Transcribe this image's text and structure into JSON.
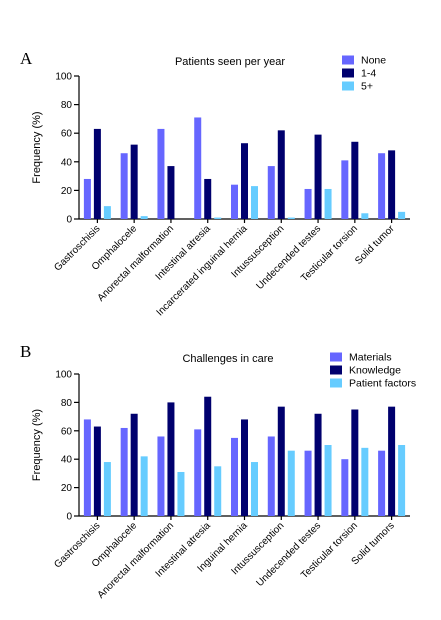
{
  "chart_data": [
    {
      "type": "bar",
      "panel_label": "A",
      "title": "Patients seen per year",
      "ylabel": "Frequency (%)",
      "xlabel": "",
      "ylim": [
        0,
        100
      ],
      "yticks": [
        0,
        20,
        40,
        60,
        80,
        100
      ],
      "legend_position": "top-right",
      "categories": [
        "Gastroschisis",
        "Omphalocele",
        "Anorectal malformation",
        "Intestinal atresia",
        "Incarcerated inguinal hernia",
        "Intussusception",
        "Undecended testes",
        "Testicular torsion",
        "Solid tumor"
      ],
      "series": [
        {
          "name": "None",
          "color": "#6666ff",
          "values": [
            28,
            46,
            63,
            71,
            24,
            37,
            21,
            41,
            46
          ]
        },
        {
          "name": "1-4",
          "color": "#00006e",
          "values": [
            63,
            52,
            37,
            28,
            53,
            62,
            59,
            54,
            48
          ]
        },
        {
          "name": "5+",
          "color": "#66ccff",
          "values": [
            9,
            2,
            0,
            1,
            23,
            1,
            21,
            4,
            5
          ]
        }
      ]
    },
    {
      "type": "bar",
      "panel_label": "B",
      "title": "Challenges in care",
      "ylabel": "Frequency (%)",
      "xlabel": "",
      "ylim": [
        0,
        100
      ],
      "yticks": [
        0,
        20,
        40,
        60,
        80,
        100
      ],
      "legend_position": "top-right",
      "categories": [
        "Gastroschisis",
        "Omphalocele",
        "Anorectal malformation",
        "Intestinal atresia",
        "Inguinal hernia",
        "Intussusception",
        "Undecended testes",
        "Testicular torsion",
        "Solid tumors"
      ],
      "series": [
        {
          "name": "Materials",
          "color": "#6666ff",
          "values": [
            68,
            62,
            56,
            61,
            55,
            56,
            46,
            40,
            46
          ]
        },
        {
          "name": "Knowledge",
          "color": "#00006e",
          "values": [
            63,
            72,
            80,
            84,
            68,
            77,
            72,
            75,
            77
          ]
        },
        {
          "name": "Patient factors",
          "color": "#66ccff",
          "values": [
            38,
            42,
            31,
            35,
            38,
            46,
            50,
            48,
            50
          ]
        }
      ]
    }
  ]
}
